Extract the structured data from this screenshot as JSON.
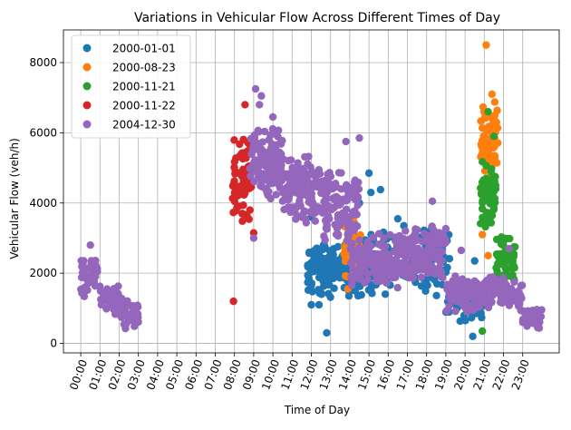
{
  "chart_data": {
    "type": "scatter",
    "title": "Variations in Vehicular Flow Across Different Times of Day",
    "xlabel": "Time of Day",
    "ylabel": "Vehicular Flow (veh/h)",
    "xlim": [
      -0.9,
      24.9
    ],
    "ylim": [
      -270,
      8930
    ],
    "x_unit": "hour of day",
    "grid": true,
    "legend_position": "top-left",
    "x_ticks": [
      "00:00",
      "01:00",
      "02:00",
      "03:00",
      "04:00",
      "05:00",
      "06:00",
      "07:00",
      "08:00",
      "09:00",
      "10:00",
      "11:00",
      "12:00",
      "13:00",
      "14:00",
      "15:00",
      "16:00",
      "17:00",
      "18:00",
      "19:00",
      "20:00",
      "21:00",
      "22:00",
      "23:00"
    ],
    "y_ticks": [
      0,
      2000,
      4000,
      6000,
      8000
    ],
    "y_tick_labels": [
      "0",
      "2000",
      "4000",
      "6000",
      "8000"
    ],
    "series": [
      {
        "name": "2000-01-01",
        "color": "#1f77b4",
        "clusters": [
          {
            "x": [
              11.8,
              14.6
            ],
            "y": [
              1200,
              3100
            ],
            "n": 180
          },
          {
            "x": [
              14.6,
              19.2
            ],
            "y": [
              1300,
              3400
            ],
            "n": 150
          },
          {
            "x": [
              19.0,
              21.0
            ],
            "y": [
              500,
              1800
            ],
            "n": 40
          }
        ],
        "points": [
          {
            "x": 12.0,
            "y": 1100
          },
          {
            "x": 12.4,
            "y": 1100
          },
          {
            "x": 12.8,
            "y": 300
          },
          {
            "x": 15.0,
            "y": 4850
          },
          {
            "x": 15.1,
            "y": 4300
          },
          {
            "x": 15.6,
            "y": 4380
          },
          {
            "x": 14.5,
            "y": 4000
          },
          {
            "x": 20.4,
            "y": 200
          },
          {
            "x": 20.5,
            "y": 2350
          },
          {
            "x": 12.0,
            "y": 3600
          },
          {
            "x": 16.5,
            "y": 3550
          }
        ]
      },
      {
        "name": "2000-08-23",
        "color": "#ff7f0e",
        "clusters": [
          {
            "x": [
              13.7,
              14.6
            ],
            "y": [
              1800,
              3800
            ],
            "n": 45
          },
          {
            "x": [
              20.8,
              21.7
            ],
            "y": [
              4500,
              7000
            ],
            "n": 70
          }
        ],
        "points": [
          {
            "x": 21.1,
            "y": 8500
          },
          {
            "x": 20.9,
            "y": 3100
          },
          {
            "x": 13.9,
            "y": 1550
          },
          {
            "x": 21.4,
            "y": 7100
          },
          {
            "x": 21.2,
            "y": 2500
          }
        ]
      },
      {
        "name": "2000-11-21",
        "color": "#2ca02c",
        "clusters": [
          {
            "x": [
              20.8,
              21.6
            ],
            "y": [
              3200,
              5400
            ],
            "n": 60
          },
          {
            "x": [
              21.6,
              22.6
            ],
            "y": [
              1500,
              3200
            ],
            "n": 55
          }
        ],
        "points": [
          {
            "x": 20.9,
            "y": 350
          },
          {
            "x": 21.2,
            "y": 6600
          },
          {
            "x": 21.5,
            "y": 5900
          },
          {
            "x": 22.6,
            "y": 2750
          },
          {
            "x": 22.7,
            "y": 1400
          }
        ]
      },
      {
        "name": "2000-11-22",
        "color": "#d62728",
        "clusters": [
          {
            "x": [
              7.9,
              8.9
            ],
            "y": [
              3400,
              6000
            ],
            "n": 80
          }
        ],
        "points": [
          {
            "x": 7.95,
            "y": 1200
          },
          {
            "x": 8.55,
            "y": 6800
          },
          {
            "x": 9.0,
            "y": 3150
          }
        ]
      },
      {
        "name": "2004-12-30",
        "color": "#9467bd",
        "clusters": [
          {
            "x": [
              0.0,
              1.0
            ],
            "y": [
              1300,
              2500
            ],
            "n": 45
          },
          {
            "x": [
              1.0,
              2.0
            ],
            "y": [
              800,
              1700
            ],
            "n": 45
          },
          {
            "x": [
              2.0,
              3.0
            ],
            "y": [
              300,
              1300
            ],
            "n": 45
          },
          {
            "x": [
              8.8,
              10.5
            ],
            "y": [
              4000,
              6200
            ],
            "n": 130
          },
          {
            "x": [
              10.5,
              12.5
            ],
            "y": [
              3300,
              5500
            ],
            "n": 120
          },
          {
            "x": [
              12.5,
              14.5
            ],
            "y": [
              2800,
              5000
            ],
            "n": 120
          },
          {
            "x": [
              14.0,
              16.5
            ],
            "y": [
              1500,
              3200
            ],
            "n": 130
          },
          {
            "x": [
              16.5,
              19.0
            ],
            "y": [
              1700,
              3500
            ],
            "n": 140
          },
          {
            "x": [
              19.0,
              21.0
            ],
            "y": [
              800,
              2000
            ],
            "n": 90
          },
          {
            "x": [
              21.0,
              22.0
            ],
            "y": [
              900,
              2000
            ],
            "n": 50
          },
          {
            "x": [
              22.0,
              23.0
            ],
            "y": [
              900,
              1800
            ],
            "n": 40
          },
          {
            "x": [
              23.0,
              24.0
            ],
            "y": [
              350,
              1100
            ],
            "n": 60
          }
        ],
        "points": [
          {
            "x": 0.5,
            "y": 2800
          },
          {
            "x": 9.1,
            "y": 7250
          },
          {
            "x": 9.4,
            "y": 7050
          },
          {
            "x": 9.0,
            "y": 3000
          },
          {
            "x": 9.3,
            "y": 6800
          },
          {
            "x": 10.0,
            "y": 6450
          },
          {
            "x": 18.3,
            "y": 4050
          },
          {
            "x": 19.8,
            "y": 2650
          },
          {
            "x": 13.8,
            "y": 5750
          },
          {
            "x": 14.5,
            "y": 5850
          },
          {
            "x": 22.3,
            "y": 2700
          }
        ]
      }
    ]
  }
}
